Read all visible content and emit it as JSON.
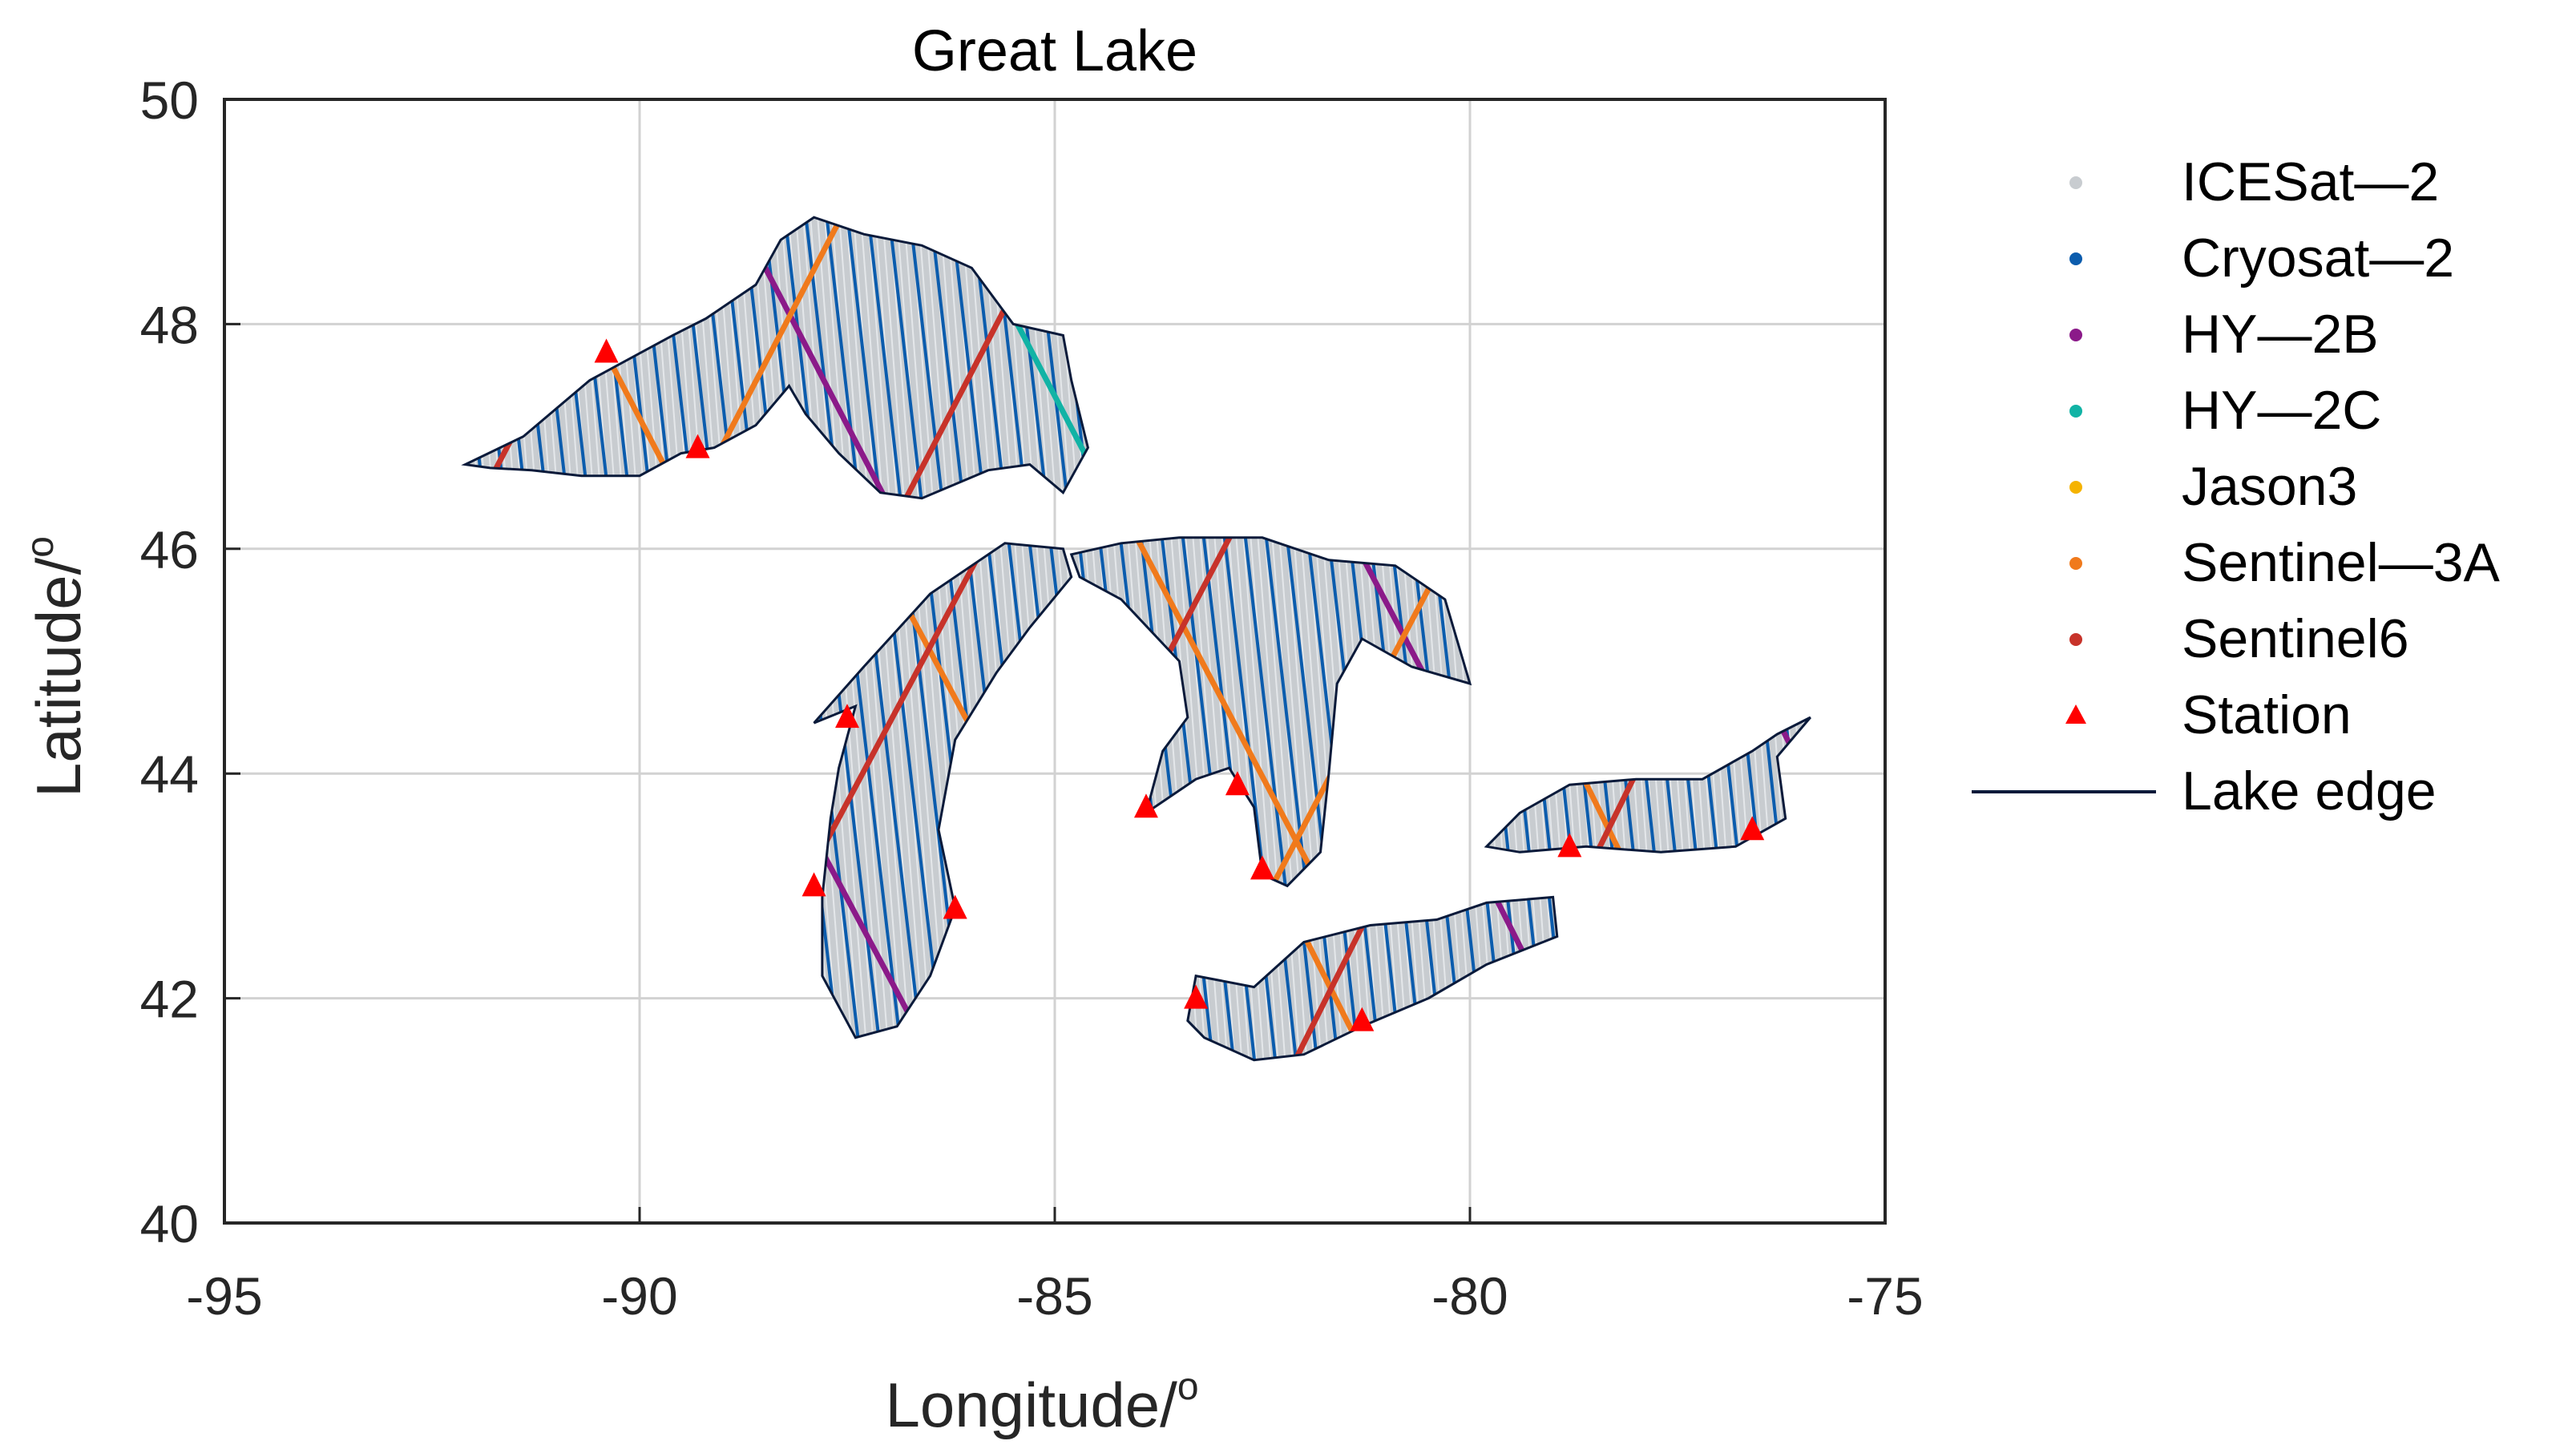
{
  "chart_data": {
    "type": "map",
    "title": "Great Lake",
    "xlabel": "Longitude/",
    "xlabel_sup": "o",
    "ylabel": "Latitude/",
    "ylabel_sup": "o",
    "xlim": [
      -95,
      -75
    ],
    "ylim": [
      40,
      50
    ],
    "xticks": [
      "-95",
      "-90",
      "-85",
      "-80",
      "-75"
    ],
    "yticks": [
      "40",
      "42",
      "44",
      "46",
      "48",
      "50"
    ],
    "grid": true,
    "legend_position": "outside-right",
    "legend": [
      {
        "label": "ICESat—2",
        "color": "#c8ccd0",
        "marker": "dot"
      },
      {
        "label": "Cryosat—2",
        "color": "#0b5cad",
        "marker": "dot"
      },
      {
        "label": "HY—2B",
        "color": "#8b1a89",
        "marker": "dot"
      },
      {
        "label": "HY—2C",
        "color": "#11b3a5",
        "marker": "dot"
      },
      {
        "label": "Jason3",
        "color": "#f5b300",
        "marker": "dot"
      },
      {
        "label": "Sentinel—3A",
        "color": "#f07a1c",
        "marker": "dot"
      },
      {
        "label": "Sentinel6",
        "color": "#c7332a",
        "marker": "dot"
      },
      {
        "label": "Station",
        "color": "#ff0000",
        "marker": "triangle"
      },
      {
        "label": "Lake edge",
        "color": "#0a1a3a",
        "marker": "line"
      }
    ],
    "stations": [
      {
        "lon": -90.4,
        "lat": 47.75
      },
      {
        "lon": -89.3,
        "lat": 46.9
      },
      {
        "lon": -87.5,
        "lat": 44.5
      },
      {
        "lon": -87.9,
        "lat": 43.0
      },
      {
        "lon": -86.2,
        "lat": 42.8
      },
      {
        "lon": -83.9,
        "lat": 43.7
      },
      {
        "lon": -82.8,
        "lat": 43.9
      },
      {
        "lon": -82.5,
        "lat": 43.15
      },
      {
        "lon": -83.3,
        "lat": 42.0
      },
      {
        "lon": -81.3,
        "lat": 41.8
      },
      {
        "lon": -78.8,
        "lat": 43.35
      },
      {
        "lon": -76.6,
        "lat": 43.5
      }
    ],
    "lakes": [
      {
        "name": "Superior",
        "edge": [
          [
            -92.1,
            46.75
          ],
          [
            -91.4,
            47.0
          ],
          [
            -90.6,
            47.5
          ],
          [
            -89.6,
            47.9
          ],
          [
            -89.2,
            48.05
          ],
          [
            -88.6,
            48.35
          ],
          [
            -88.3,
            48.75
          ],
          [
            -87.9,
            48.95
          ],
          [
            -87.3,
            48.8
          ],
          [
            -86.6,
            48.7
          ],
          [
            -86.0,
            48.5
          ],
          [
            -85.5,
            48.0
          ],
          [
            -84.9,
            47.9
          ],
          [
            -84.8,
            47.5
          ],
          [
            -84.6,
            46.9
          ],
          [
            -84.9,
            46.5
          ],
          [
            -85.3,
            46.75
          ],
          [
            -85.8,
            46.7
          ],
          [
            -86.6,
            46.45
          ],
          [
            -87.1,
            46.5
          ],
          [
            -87.6,
            46.85
          ],
          [
            -88.0,
            47.2
          ],
          [
            -88.2,
            47.45
          ],
          [
            -88.6,
            47.1
          ],
          [
            -89.1,
            46.9
          ],
          [
            -89.5,
            46.85
          ],
          [
            -90.0,
            46.65
          ],
          [
            -90.7,
            46.65
          ],
          [
            -91.3,
            46.7
          ],
          [
            -91.8,
            46.72
          ]
        ]
      },
      {
        "name": "Michigan",
        "edge": [
          [
            -87.9,
            44.45
          ],
          [
            -87.3,
            44.95
          ],
          [
            -86.5,
            45.6
          ],
          [
            -85.6,
            46.05
          ],
          [
            -84.9,
            46.0
          ],
          [
            -84.8,
            45.75
          ],
          [
            -85.3,
            45.3
          ],
          [
            -85.7,
            44.9
          ],
          [
            -86.2,
            44.3
          ],
          [
            -86.4,
            43.5
          ],
          [
            -86.2,
            42.8
          ],
          [
            -86.5,
            42.2
          ],
          [
            -86.9,
            41.75
          ],
          [
            -87.4,
            41.65
          ],
          [
            -87.8,
            42.2
          ],
          [
            -87.8,
            42.9
          ],
          [
            -87.7,
            43.6
          ],
          [
            -87.6,
            44.05
          ],
          [
            -87.4,
            44.6
          ]
        ]
      },
      {
        "name": "Huron",
        "edge": [
          [
            -84.8,
            45.95
          ],
          [
            -84.2,
            46.05
          ],
          [
            -83.5,
            46.1
          ],
          [
            -82.5,
            46.1
          ],
          [
            -81.7,
            45.9
          ],
          [
            -80.9,
            45.85
          ],
          [
            -80.3,
            45.55
          ],
          [
            -80.0,
            44.8
          ],
          [
            -80.7,
            44.95
          ],
          [
            -81.3,
            45.2
          ],
          [
            -81.6,
            44.8
          ],
          [
            -81.7,
            44.0
          ],
          [
            -81.8,
            43.3
          ],
          [
            -82.2,
            43.0
          ],
          [
            -82.5,
            43.1
          ],
          [
            -82.6,
            43.7
          ],
          [
            -82.9,
            44.05
          ],
          [
            -83.3,
            43.95
          ],
          [
            -83.9,
            43.65
          ],
          [
            -83.7,
            44.2
          ],
          [
            -83.4,
            44.5
          ],
          [
            -83.5,
            45.0
          ],
          [
            -84.2,
            45.55
          ],
          [
            -84.7,
            45.75
          ]
        ]
      },
      {
        "name": "Erie",
        "edge": [
          [
            -83.4,
            41.8
          ],
          [
            -83.3,
            42.2
          ],
          [
            -82.6,
            42.1
          ],
          [
            -82.0,
            42.5
          ],
          [
            -81.2,
            42.65
          ],
          [
            -80.4,
            42.7
          ],
          [
            -79.8,
            42.85
          ],
          [
            -79.0,
            42.9
          ],
          [
            -78.95,
            42.55
          ],
          [
            -79.8,
            42.3
          ],
          [
            -80.5,
            42.0
          ],
          [
            -81.3,
            41.75
          ],
          [
            -82.0,
            41.5
          ],
          [
            -82.6,
            41.45
          ],
          [
            -83.2,
            41.65
          ]
        ]
      },
      {
        "name": "Ontario",
        "edge": [
          [
            -79.8,
            43.35
          ],
          [
            -79.4,
            43.65
          ],
          [
            -78.8,
            43.9
          ],
          [
            -78.0,
            43.95
          ],
          [
            -77.2,
            43.95
          ],
          [
            -76.6,
            44.2
          ],
          [
            -76.3,
            44.35
          ],
          [
            -75.9,
            44.5
          ],
          [
            -76.3,
            44.15
          ],
          [
            -76.2,
            43.6
          ],
          [
            -76.8,
            43.35
          ],
          [
            -77.7,
            43.3
          ],
          [
            -78.6,
            43.35
          ],
          [
            -79.4,
            43.3
          ]
        ]
      }
    ]
  }
}
